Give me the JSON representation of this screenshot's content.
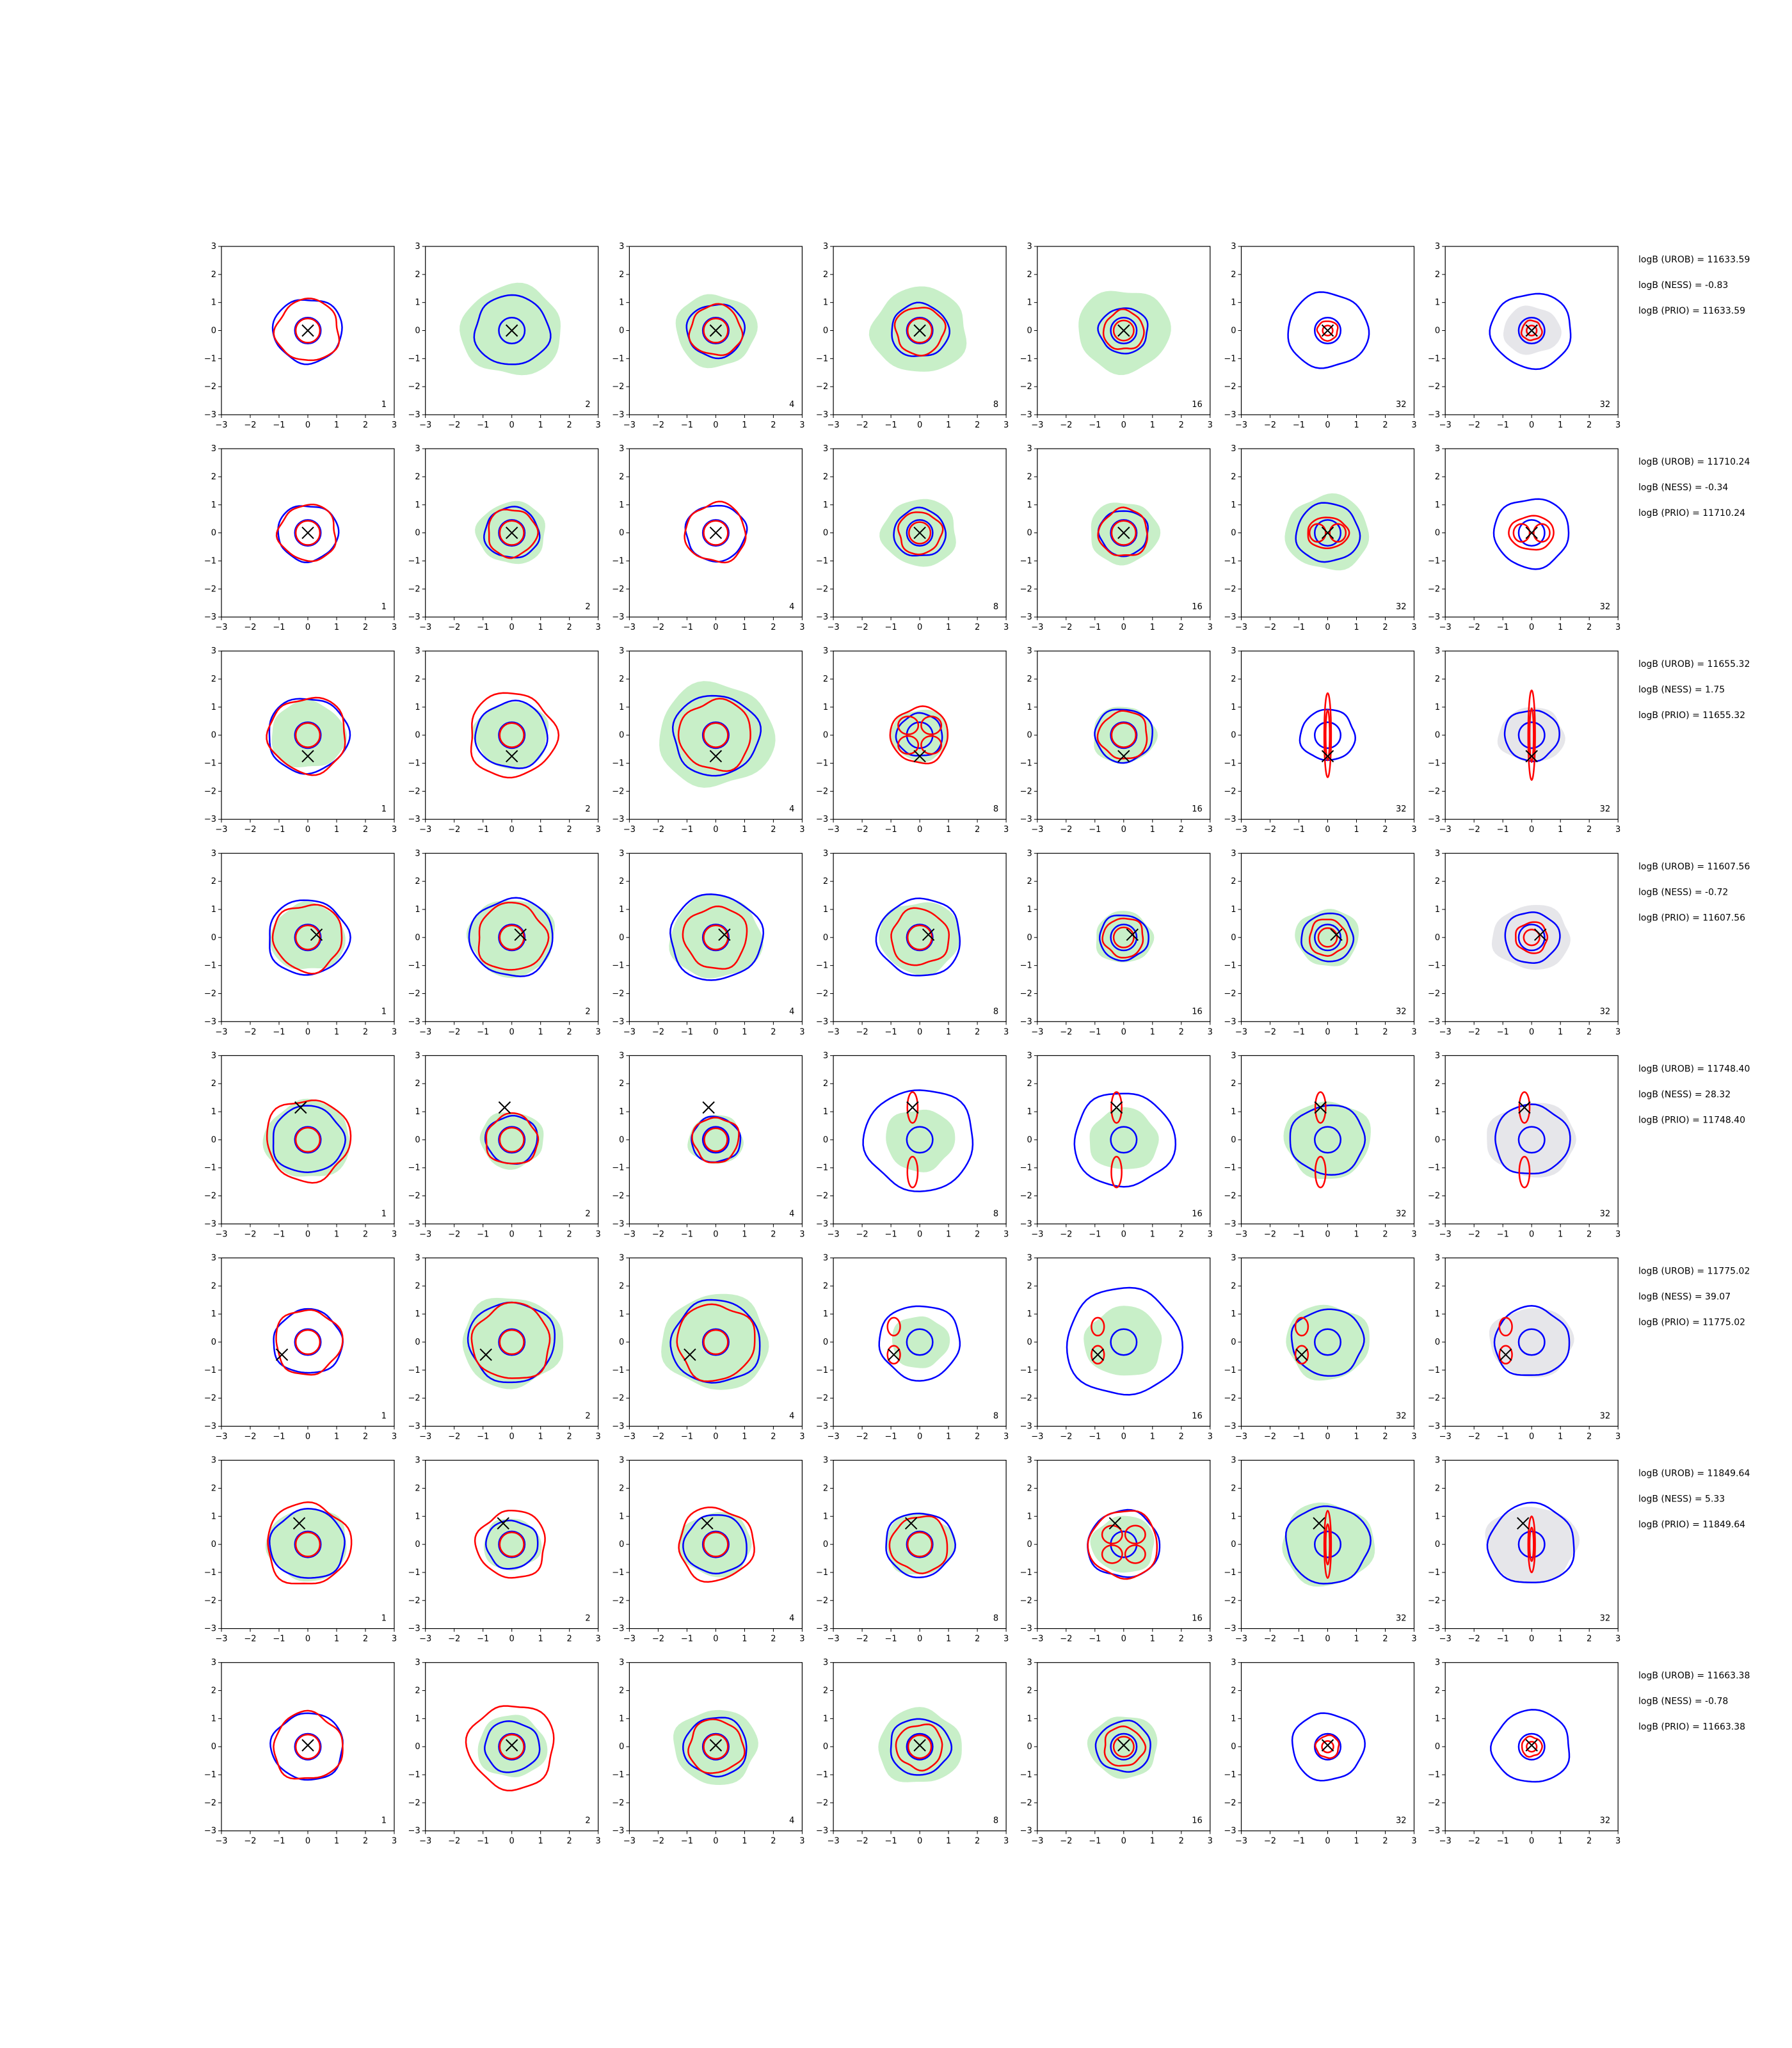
{
  "chart_data": {
    "type": "contour-grid",
    "axis_range": [
      -3,
      3
    ],
    "ticks": [
      -3,
      -2,
      -1,
      0,
      1,
      2,
      3
    ],
    "tick_labels": [
      "−3",
      "−2",
      "−1",
      "0",
      "1",
      "2",
      "3"
    ],
    "column_labels": [
      "1",
      "2",
      "4",
      "8",
      "16",
      "32",
      "32"
    ],
    "colors": {
      "fill_green": "#c8efc8",
      "fill_grey": "#e6e6ea",
      "blue_contour": "#0000ff",
      "red_contour": "#ff0000",
      "marker": "#000000"
    },
    "rows": [
      {
        "annotations": [
          "logB (UROB) = 11633.59",
          "logB (NESS) = -0.83",
          "logB (PRIO) = 11633.59"
        ],
        "marker": [
          0.0,
          0.0
        ],
        "panels": [
          {
            "green": 0.0,
            "blue": 1.2,
            "red": 1.1,
            "redShape": "blob"
          },
          {
            "green": 1.75,
            "blue": 1.3,
            "red": 0.0,
            "redShape": "none"
          },
          {
            "green": 1.4,
            "blue": 1.0,
            "red": 0.9,
            "redShape": "blob"
          },
          {
            "green": 1.65,
            "blue": 1.0,
            "red": 0.85,
            "redShape": "blob"
          },
          {
            "green": 1.6,
            "blue": 0.85,
            "red": 0.7,
            "redShape": "blob"
          },
          {
            "green": 0.0,
            "blue": 1.4,
            "red": 0.35,
            "redShape": "blob"
          },
          {
            "green": 0.0,
            "grey": 1.0,
            "blue": 1.4,
            "red": 0.35,
            "redShape": "blob"
          }
        ]
      },
      {
        "annotations": [
          "logB (UROB) = 11710.24",
          "logB (NESS) = -0.34",
          "logB (PRIO) = 11710.24"
        ],
        "marker": [
          0.0,
          0.0
        ],
        "panels": [
          {
            "green": 0.0,
            "blue": 1.05,
            "red": 1.0,
            "redShape": "blob"
          },
          {
            "green": 1.2,
            "blue": 0.95,
            "red": 0.85,
            "redShape": "blob"
          },
          {
            "green": 0.0,
            "blue": 1.05,
            "red": 1.05,
            "redShape": "blob"
          },
          {
            "green": 1.3,
            "blue": 0.9,
            "red": 0.75,
            "redShape": "blob"
          },
          {
            "green": 1.2,
            "blue": 0.85,
            "red": 0.85,
            "redShape": "blob"
          },
          {
            "green": 1.45,
            "blue": 1.1,
            "red": 0.55,
            "redShape": "lobes2h"
          },
          {
            "green": 0.0,
            "grey": 0.0,
            "blue": 1.3,
            "red": 0.6,
            "redShape": "lobes2h"
          }
        ]
      },
      {
        "annotations": [
          "logB (UROB) = 11655.32",
          "logB (NESS) = 1.75",
          "logB (PRIO) = 11655.32"
        ],
        "marker": [
          0.0,
          -0.75
        ],
        "panels": [
          {
            "green": 1.3,
            "blue": 1.4,
            "red": 1.35,
            "redShape": "blob"
          },
          {
            "green": 1.3,
            "blue": 1.25,
            "red": 1.5,
            "redShape": "blob"
          },
          {
            "green": 2.0,
            "blue": 1.5,
            "red": 1.25,
            "redShape": "blob"
          },
          {
            "green": 1.0,
            "blue": 0.8,
            "red": 1.0,
            "redShape": "lobes4"
          },
          {
            "green": 1.1,
            "blue": 1.0,
            "red": 0.85,
            "redShape": "blob"
          },
          {
            "green": 0.0,
            "blue": 0.95,
            "red": 1.5,
            "redShape": "vertical"
          },
          {
            "green": 0.0,
            "grey": 1.15,
            "blue": 0.95,
            "red": 1.6,
            "redShape": "vertical"
          }
        ]
      },
      {
        "annotations": [
          "logB (UROB) = 11607.56",
          "logB (NESS) = -0.72",
          "logB (PRIO) = 11607.56"
        ],
        "marker": [
          0.3,
          0.1
        ],
        "panels": [
          {
            "green": 1.3,
            "blue": 1.4,
            "red": 1.2,
            "redShape": "blob"
          },
          {
            "green": 1.5,
            "blue": 1.45,
            "red": 1.2,
            "redShape": "blob"
          },
          {
            "green": 1.6,
            "blue": 1.6,
            "red": 1.1,
            "redShape": "blob"
          },
          {
            "green": 1.4,
            "blue": 1.45,
            "red": 1.0,
            "redShape": "blob"
          },
          {
            "green": 1.0,
            "blue": 0.85,
            "red": 0.7,
            "redShape": "blob"
          },
          {
            "green": 1.1,
            "blue": 0.9,
            "red": 0.65,
            "redShape": "blob"
          },
          {
            "green": 0.0,
            "grey": 1.35,
            "blue": 0.95,
            "red": 0.55,
            "redShape": "blob"
          }
        ]
      },
      {
        "annotations": [
          "logB (UROB) = 11748.40",
          "logB (NESS) = 28.32",
          "logB (PRIO) = 11748.40"
        ],
        "marker": [
          -0.25,
          1.15
        ],
        "panels": [
          {
            "green": 1.5,
            "blue": 1.25,
            "red": 1.45,
            "redShape": "blob"
          },
          {
            "green": 1.1,
            "blue": 0.9,
            "red": 0.9,
            "redShape": "blob"
          },
          {
            "green": 0.95,
            "blue": 0.85,
            "red": 0.8,
            "redShape": "blob"
          },
          {
            "green": 1.2,
            "blue": 1.9,
            "red": 2.1,
            "redShape": "twoLobesV"
          },
          {
            "green": 1.2,
            "blue": 1.75,
            "red": 1.9,
            "redShape": "twoLobesV"
          },
          {
            "green": 1.5,
            "blue": 1.3,
            "red": 1.7,
            "redShape": "twoLobesV"
          },
          {
            "green": 0.0,
            "grey": 1.55,
            "blue": 1.3,
            "red": 1.7,
            "redShape": "twoLobesV"
          }
        ]
      },
      {
        "annotations": [
          "logB (UROB) = 11775.02",
          "logB (NESS) = 39.07",
          "logB (PRIO) = 11775.02"
        ],
        "marker": [
          -0.9,
          -0.45
        ],
        "panels": [
          {
            "green": 0.0,
            "blue": 1.2,
            "red": 1.15,
            "redShape": "blob"
          },
          {
            "green": 1.75,
            "blue": 1.5,
            "red": 1.35,
            "redShape": "blob"
          },
          {
            "green": 1.85,
            "blue": 1.55,
            "red": 1.35,
            "redShape": "blob"
          },
          {
            "green": 1.0,
            "blue": 1.4,
            "red": 0.9,
            "redShape": "leftLobes"
          },
          {
            "green": 1.35,
            "blue": 2.0,
            "red": 1.3,
            "redShape": "leftLobes"
          },
          {
            "green": 1.45,
            "blue": 1.25,
            "red": 0.9,
            "redShape": "leftLobes"
          },
          {
            "green": 0.0,
            "grey": 1.45,
            "blue": 1.3,
            "red": 0.9,
            "redShape": "leftLobes"
          }
        ]
      },
      {
        "annotations": [
          "logB (UROB) = 11849.64",
          "logB (NESS) = 5.33",
          "logB (PRIO) = 11849.64"
        ],
        "marker": [
          -0.3,
          0.75
        ],
        "panels": [
          {
            "green": 1.4,
            "blue": 1.3,
            "red": 1.45,
            "redShape": "blob"
          },
          {
            "green": 1.0,
            "blue": 0.9,
            "red": 1.2,
            "redShape": "blob"
          },
          {
            "green": 1.25,
            "blue": 1.1,
            "red": 1.3,
            "redShape": "blob"
          },
          {
            "green": 1.2,
            "blue": 1.2,
            "red": 1.0,
            "redShape": "blob"
          },
          {
            "green": 1.1,
            "blue": 1.25,
            "red": 1.2,
            "redShape": "lobes4"
          },
          {
            "green": 1.6,
            "blue": 1.45,
            "red": 1.2,
            "redShape": "vertical"
          },
          {
            "green": 0.0,
            "grey": 1.6,
            "blue": 1.5,
            "red": 1.0,
            "redShape": "vertical"
          }
        ]
      },
      {
        "annotations": [
          "logB (UROB) = 11663.38",
          "logB (NESS) = -0.78",
          "logB (PRIO) = 11663.38"
        ],
        "marker": [
          0.0,
          0.05
        ],
        "panels": [
          {
            "green": 0.0,
            "blue": 1.25,
            "red": 1.2,
            "redShape": "blob"
          },
          {
            "green": 1.2,
            "blue": 0.95,
            "red": 1.5,
            "redShape": "blob"
          },
          {
            "green": 1.45,
            "blue": 1.1,
            "red": 0.95,
            "redShape": "blob"
          },
          {
            "green": 1.45,
            "blue": 1.05,
            "red": 0.8,
            "redShape": "blob"
          },
          {
            "green": 1.2,
            "blue": 0.95,
            "red": 0.7,
            "redShape": "blob"
          },
          {
            "green": 0.0,
            "blue": 1.25,
            "red": 0.4,
            "redShape": "blob"
          },
          {
            "green": 0.0,
            "grey": 0.0,
            "blue": 1.35,
            "red": 0.35,
            "redShape": "blob"
          }
        ]
      }
    ]
  }
}
